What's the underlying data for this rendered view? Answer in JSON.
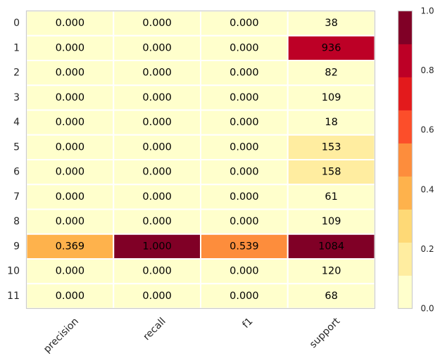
{
  "chart_data": {
    "type": "heatmap",
    "title": "",
    "xlabel": "",
    "ylabel": "",
    "columns": [
      "precision",
      "recall",
      "f1",
      "support"
    ],
    "rows": [
      "0",
      "1",
      "2",
      "3",
      "4",
      "5",
      "6",
      "7",
      "8",
      "9",
      "10",
      "11"
    ],
    "cell_labels": [
      [
        "0.000",
        "0.000",
        "0.000",
        "38"
      ],
      [
        "0.000",
        "0.000",
        "0.000",
        "936"
      ],
      [
        "0.000",
        "0.000",
        "0.000",
        "82"
      ],
      [
        "0.000",
        "0.000",
        "0.000",
        "109"
      ],
      [
        "0.000",
        "0.000",
        "0.000",
        "18"
      ],
      [
        "0.000",
        "0.000",
        "0.000",
        "153"
      ],
      [
        "0.000",
        "0.000",
        "0.000",
        "158"
      ],
      [
        "0.000",
        "0.000",
        "0.000",
        "61"
      ],
      [
        "0.000",
        "0.000",
        "0.000",
        "109"
      ],
      [
        "0.369",
        "1.000",
        "0.539",
        "1084"
      ],
      [
        "0.000",
        "0.000",
        "0.000",
        "120"
      ],
      [
        "0.000",
        "0.000",
        "0.000",
        "68"
      ]
    ],
    "color_values": [
      [
        0,
        0,
        0,
        0.035
      ],
      [
        0,
        0,
        0,
        0.863
      ],
      [
        0,
        0,
        0,
        0.076
      ],
      [
        0,
        0,
        0,
        0.101
      ],
      [
        0,
        0,
        0,
        0.017
      ],
      [
        0,
        0,
        0,
        0.141
      ],
      [
        0,
        0,
        0,
        0.146
      ],
      [
        0,
        0,
        0,
        0.056
      ],
      [
        0,
        0,
        0,
        0.101
      ],
      [
        0.369,
        1.0,
        0.539,
        1.0
      ],
      [
        0,
        0,
        0,
        0.111
      ],
      [
        0,
        0,
        0,
        0.063
      ]
    ],
    "support_color_scale_max": 1084,
    "colorbar": {
      "range": [
        0,
        1
      ],
      "ticks": [
        "0.0",
        "0.2",
        "0.4",
        "0.6",
        "0.8",
        "1.0"
      ],
      "colors": [
        "#ffffcc",
        "#ffeda0",
        "#fed976",
        "#feb24c",
        "#fd8d3c",
        "#fc4e2a",
        "#e31a1c",
        "#bd0026",
        "#800026"
      ]
    },
    "legend": "colorbar-right",
    "grid": false
  }
}
